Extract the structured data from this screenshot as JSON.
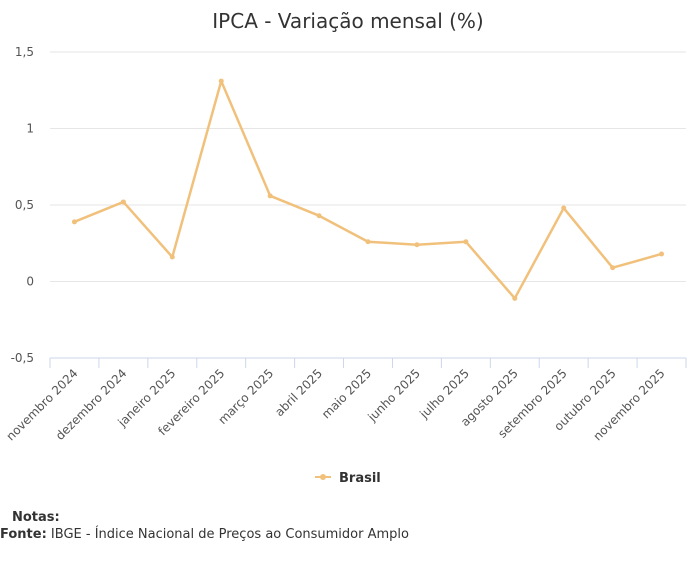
{
  "chart_data": {
    "type": "line",
    "title": "IPCA - Variação mensal (%)",
    "categories": [
      "novembro 2024",
      "dezembro 2024",
      "janeiro 2025",
      "fevereiro 2025",
      "março 2025",
      "abril 2025",
      "maio 2025",
      "junho 2025",
      "julho 2025",
      "agosto 2025",
      "setembro 2025",
      "outubro 2025",
      "novembro 2025"
    ],
    "series": [
      {
        "name": "Brasil",
        "values": [
          0.39,
          0.52,
          0.16,
          1.31,
          0.56,
          0.43,
          0.26,
          0.24,
          0.26,
          -0.11,
          0.48,
          0.09,
          0.18
        ]
      }
    ],
    "ylim": [
      -0.5,
      1.5
    ],
    "yticks": [
      "1,5",
      "1",
      "0,5",
      "0",
      "-0,5"
    ],
    "ytick_values": [
      1.5,
      1,
      0.5,
      0,
      -0.5
    ],
    "xlabel": "",
    "ylabel": "",
    "legend": "bottom-center",
    "grid": true,
    "color": "#f1c17c"
  },
  "footer": {
    "notes_label": "Notas:",
    "source_label": "Fonte:",
    "source_text": "IBGE - Índice Nacional de Preços ao Consumidor Amplo"
  }
}
